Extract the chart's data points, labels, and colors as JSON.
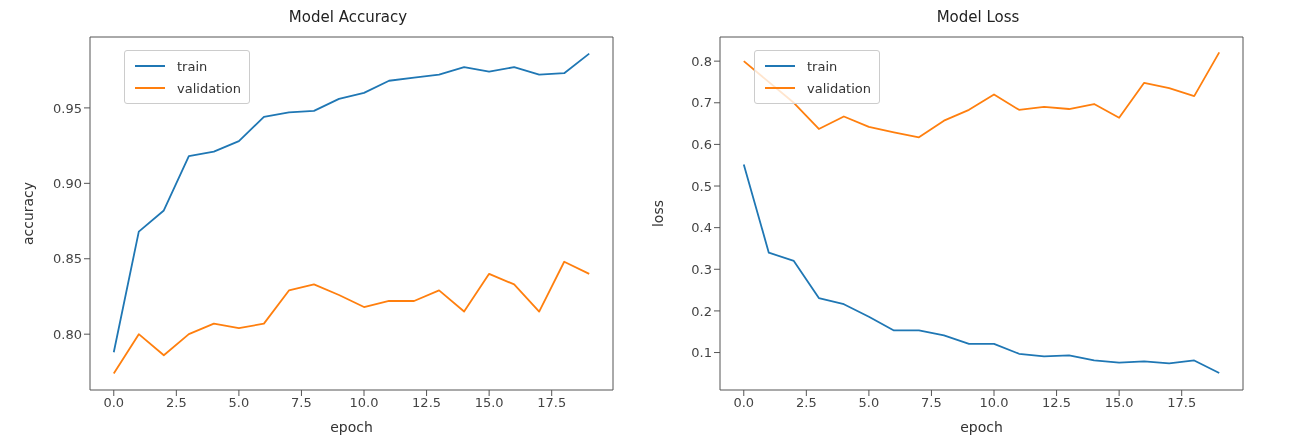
{
  "chart_data": [
    {
      "type": "line",
      "title": "Model Accuracy",
      "xlabel": "epoch",
      "ylabel": "accuracy",
      "legend": "top left",
      "grid": false,
      "x": [
        0,
        1,
        2,
        3,
        4,
        5,
        6,
        7,
        8,
        9,
        10,
        11,
        12,
        13,
        14,
        15,
        16,
        17,
        18,
        19
      ],
      "xlim": [
        -0.95,
        19.95
      ],
      "xticks": [
        {
          "value": 0,
          "label": "0.0"
        },
        {
          "value": 2.5,
          "label": "2.5"
        },
        {
          "value": 5,
          "label": "5.0"
        },
        {
          "value": 7.5,
          "label": "7.5"
        },
        {
          "value": 10,
          "label": "10.0"
        },
        {
          "value": 12.5,
          "label": "12.5"
        },
        {
          "value": 15,
          "label": "15.0"
        },
        {
          "value": 17.5,
          "label": "17.5"
        }
      ],
      "ylim": [
        0.763,
        0.997
      ],
      "yticks": [
        {
          "value": 0.8,
          "label": "0.80"
        },
        {
          "value": 0.85,
          "label": "0.85"
        },
        {
          "value": 0.9,
          "label": "0.90"
        },
        {
          "value": 0.95,
          "label": "0.95"
        }
      ],
      "series": [
        {
          "name": "train",
          "color": "#1f77b4",
          "values": [
            0.788,
            0.868,
            0.882,
            0.918,
            0.921,
            0.928,
            0.944,
            0.947,
            0.948,
            0.956,
            0.96,
            0.968,
            0.97,
            0.972,
            0.977,
            0.974,
            0.977,
            0.972,
            0.973,
            0.986
          ]
        },
        {
          "name": "validation",
          "color": "#ff7f0e",
          "values": [
            0.774,
            0.8,
            0.786,
            0.8,
            0.807,
            0.804,
            0.807,
            0.829,
            0.833,
            0.826,
            0.818,
            0.822,
            0.822,
            0.829,
            0.815,
            0.84,
            0.833,
            0.815,
            0.848,
            0.84
          ]
        }
      ]
    },
    {
      "type": "line",
      "title": "Model Loss",
      "xlabel": "epoch",
      "ylabel": "loss",
      "legend": "top left",
      "grid": false,
      "x": [
        0,
        1,
        2,
        3,
        4,
        5,
        6,
        7,
        8,
        9,
        10,
        11,
        12,
        13,
        14,
        15,
        16,
        17,
        18,
        19
      ],
      "xlim": [
        -0.95,
        19.95
      ],
      "xticks": [
        {
          "value": 0,
          "label": "0.0"
        },
        {
          "value": 2.5,
          "label": "2.5"
        },
        {
          "value": 5,
          "label": "5.0"
        },
        {
          "value": 7.5,
          "label": "7.5"
        },
        {
          "value": 10,
          "label": "10.0"
        },
        {
          "value": 12.5,
          "label": "12.5"
        },
        {
          "value": 15,
          "label": "15.0"
        },
        {
          "value": 17.5,
          "label": "17.5"
        }
      ],
      "ylim": [
        0.01,
        0.858
      ],
      "yticks": [
        0.1,
        0.2,
        0.3,
        0.4,
        0.5,
        0.6,
        0.7,
        0.8
      ],
      "series": [
        {
          "name": "train",
          "color": "#1f77b4",
          "values": [
            0.552,
            0.34,
            0.32,
            0.231,
            0.216,
            0.186,
            0.153,
            0.153,
            0.141,
            0.121,
            0.121,
            0.097,
            0.091,
            0.093,
            0.081,
            0.076,
            0.079,
            0.074,
            0.081,
            0.051
          ]
        },
        {
          "name": "validation",
          "color": "#ff7f0e",
          "values": [
            0.8,
            null,
            0.7,
            0.637,
            0.667,
            0.642,
            0.629,
            0.617,
            0.657,
            0.683,
            0.72,
            0.683,
            0.69,
            0.685,
            0.697,
            0.664,
            0.748,
            0.735,
            0.716,
            0.821
          ]
        }
      ]
    }
  ]
}
